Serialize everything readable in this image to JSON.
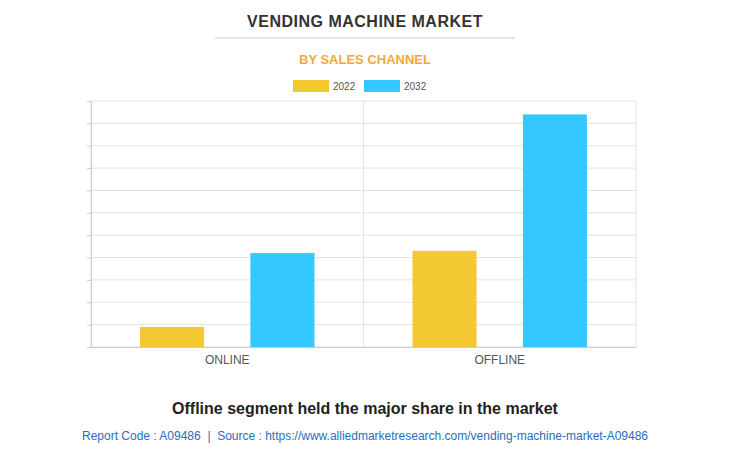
{
  "chart_data": {
    "type": "bar",
    "title": "VENDING MACHINE MARKET",
    "subtitle": "BY SALES CHANNEL",
    "caption": "Offline segment held the major share in the market",
    "footer": "Report Code : A09486  |  Source : https://www.alliedmarketresearch.com/vending-machine-market-A09486",
    "categories": [
      "ONLINE",
      "OFFLINE"
    ],
    "series": [
      {
        "name": "2022",
        "color": "#F4C831",
        "values": [
          0.9,
          4.3
        ]
      },
      {
        "name": "2032",
        "color": "#33C8FF",
        "values": [
          4.2,
          10.4
        ]
      }
    ],
    "ylim": [
      0,
      11
    ],
    "yticks": [
      0,
      1,
      2,
      3,
      4,
      5,
      6,
      7,
      8,
      9,
      10,
      11
    ],
    "grid": true,
    "tick_labels": "x"
  }
}
